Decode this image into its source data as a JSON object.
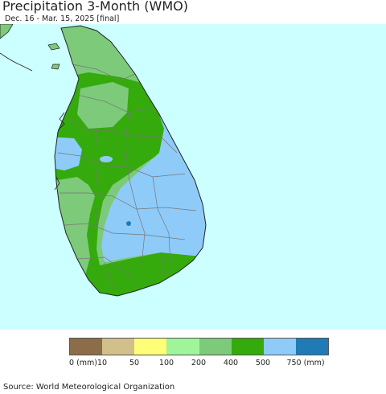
{
  "header": {
    "title": "Precipitation 3-Month (WMO)",
    "subtitle": "Dec. 16 - Mar. 15, 2025 [final]"
  },
  "map": {
    "region": "Sri Lanka",
    "colors": {
      "ocean": "#ccffff",
      "coast_outline": "#222222",
      "district_lines": "#777777"
    },
    "zone_categories": [
      "200-400",
      "400-500",
      "500-750"
    ]
  },
  "legend": {
    "categories": [
      {
        "label": "0 (mm)",
        "color": "#8b6d4a"
      },
      {
        "label": "10",
        "color": "#d2c08a"
      },
      {
        "label": "50",
        "color": "#ffff77"
      },
      {
        "label": "100",
        "color": "#a0f59a"
      },
      {
        "label": "200",
        "color": "#7dca7b"
      },
      {
        "label": "400",
        "color": "#35aa0c"
      },
      {
        "label": "500",
        "color": "#8ecbf9"
      },
      {
        "label": "750 (mm)",
        "color": "#1f7ab6"
      }
    ]
  },
  "footer": {
    "source": "Source: World Meteorological Organization"
  }
}
